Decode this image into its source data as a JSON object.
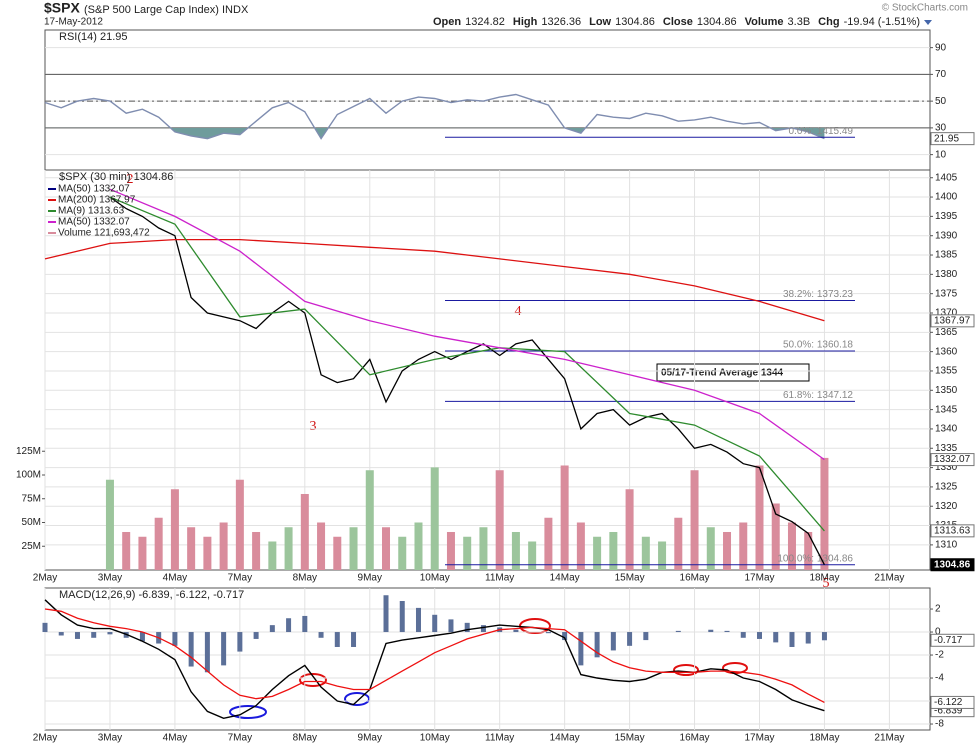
{
  "header": {
    "symbol": "$SPX",
    "name": "(S&P 500 Large Cap Index) INDX",
    "date": "17-May-2012",
    "credit": "© StockCharts.com",
    "quote": [
      {
        "label": "Open",
        "value": "1324.82"
      },
      {
        "label": "High",
        "value": "1326.36"
      },
      {
        "label": "Low",
        "value": "1304.86"
      },
      {
        "label": "Close",
        "value": "1304.86"
      },
      {
        "label": "Volume",
        "value": "3.3B"
      },
      {
        "label": "Chg",
        "value": "-19.94 (-1.51%)"
      }
    ]
  },
  "chart_data": [
    {
      "type": "line",
      "title": "RSI(14) 21.95",
      "xlim": [
        0,
        54.5
      ],
      "ylim": [
        -1.5,
        103.2
      ],
      "yticks": [
        10,
        30,
        50,
        70,
        90
      ],
      "reference_lines": [
        30,
        50,
        70
      ],
      "fill_color": "#6f9c9c",
      "x": [
        0,
        1,
        2,
        3,
        4,
        5,
        6,
        7,
        8,
        9,
        10,
        11,
        12,
        13,
        14,
        15,
        16,
        17,
        18,
        19,
        20,
        21,
        22,
        23,
        24,
        25,
        26,
        27,
        28,
        29,
        30,
        31,
        32,
        33,
        34,
        35,
        36,
        37,
        38,
        39,
        40,
        41,
        42,
        43,
        44,
        45,
        46,
        47,
        48
      ],
      "series": [
        {
          "color": "#7f8db0",
          "values": [
            49,
            45,
            50,
            52,
            50,
            41,
            44,
            38,
            27,
            24,
            22,
            26,
            25,
            35,
            45,
            49,
            42,
            22,
            40,
            46,
            52,
            41,
            50,
            53,
            52,
            49,
            51,
            50,
            53,
            55,
            51,
            47,
            30,
            26,
            40,
            38,
            37,
            41,
            39,
            35,
            36,
            38,
            35,
            33,
            34,
            28,
            30,
            27,
            21.95
          ]
        }
      ]
    },
    {
      "type": "line",
      "title": "$SPX (30 min) 1304.86",
      "xlim": [
        0,
        54.5
      ],
      "ylim": [
        1303.5,
        1407
      ],
      "yticks": [
        1310,
        1315,
        1320,
        1325,
        1330,
        1335,
        1340,
        1345,
        1350,
        1355,
        1360,
        1365,
        1370,
        1375,
        1380,
        1385,
        1390,
        1395,
        1400,
        1405
      ],
      "xticks": [
        {
          "value": 0,
          "label": "2May"
        },
        {
          "value": 4,
          "label": "3May"
        },
        {
          "value": 8,
          "label": "4May"
        },
        {
          "value": 12,
          "label": "7May"
        },
        {
          "value": 16,
          "label": "8May"
        },
        {
          "value": 20,
          "label": "9May"
        },
        {
          "value": 24,
          "label": "10May"
        },
        {
          "value": 28,
          "label": "11May"
        },
        {
          "value": 32,
          "label": "14May"
        },
        {
          "value": 36,
          "label": "15May"
        },
        {
          "value": 40,
          "label": "16May"
        },
        {
          "value": 44,
          "label": "17May"
        },
        {
          "value": 48,
          "label": "18May"
        },
        {
          "value": 52,
          "label": "21May"
        }
      ],
      "grid": true,
      "legend_extra": [
        {
          "name": "MA(50) 1332.07",
          "color": "#000080"
        }
      ],
      "series": [
        {
          "color": "#000000",
          "x": [
            4,
            5,
            6,
            7,
            8,
            9,
            10,
            11,
            12,
            13,
            14,
            15,
            16,
            17,
            18,
            19,
            20,
            21,
            22,
            23,
            24,
            25,
            26,
            27,
            28,
            29,
            30,
            31,
            32,
            33,
            34,
            35,
            36,
            37,
            38,
            39,
            40,
            41,
            42,
            43,
            44,
            45,
            46,
            47,
            48
          ],
          "values": [
            1400,
            1397,
            1395,
            1392,
            1390,
            1374,
            1370,
            1369,
            1368,
            1366,
            1370,
            1373,
            1370,
            1354,
            1352,
            1353,
            1358,
            1347,
            1355,
            1358,
            1360,
            1358,
            1360,
            1362,
            1359,
            1362,
            1363,
            1358,
            1353,
            1340,
            1344,
            1345,
            1341,
            1343,
            1344,
            1340,
            1335,
            1336,
            1334,
            1331,
            1330,
            1318,
            1316,
            1313,
            1304.86
          ]
        },
        {
          "name": "MA(200) 1367.97",
          "color": "#dd1111",
          "x": [
            0,
            4,
            8,
            12,
            16,
            20,
            24,
            28,
            32,
            36,
            40,
            44,
            48
          ],
          "values": [
            1384,
            1388,
            1389,
            1389,
            1388,
            1387,
            1386,
            1384,
            1382,
            1380,
            1377,
            1373,
            1367.97
          ]
        },
        {
          "name": "MA(9) 1313.63",
          "color": "#2e8b2e",
          "x": [
            4,
            8,
            12,
            16,
            20,
            24,
            28,
            32,
            36,
            40,
            44,
            48
          ],
          "values": [
            1400,
            1393,
            1369,
            1371,
            1354,
            1358,
            1361,
            1360,
            1344,
            1341,
            1333,
            1313.63
          ]
        },
        {
          "name": "MA(50) 1332.07",
          "color": "#cc22cc",
          "x": [
            4,
            8,
            12,
            16,
            20,
            24,
            28,
            32,
            36,
            40,
            44,
            48
          ],
          "values": [
            1402,
            1395,
            1386,
            1373,
            1368,
            1364,
            1361,
            1358,
            1354,
            1350,
            1344,
            1332.07
          ]
        }
      ],
      "volume": {
        "name": "Volume 121,693,472",
        "up_color": "#9cc59c",
        "down_color": "#d98c9c",
        "ylim": [
          0,
          421
        ],
        "yticks": [
          {
            "value": 25,
            "label": "25M"
          },
          {
            "value": 50,
            "label": "50M"
          },
          {
            "value": 75,
            "label": "75M"
          },
          {
            "value": 100,
            "label": "100M"
          },
          {
            "value": 125,
            "label": "125M"
          }
        ],
        "x": [
          4,
          5,
          6,
          7,
          8,
          9,
          10,
          11,
          12,
          13,
          14,
          15,
          16,
          17,
          18,
          19,
          20,
          21,
          22,
          23,
          24,
          25,
          26,
          27,
          28,
          29,
          30,
          31,
          32,
          33,
          34,
          35,
          36,
          37,
          38,
          39,
          40,
          41,
          42,
          43,
          44,
          45,
          46,
          47,
          48
        ],
        "values": [
          95,
          40,
          35,
          55,
          85,
          45,
          35,
          50,
          95,
          40,
          30,
          45,
          80,
          50,
          35,
          45,
          105,
          45,
          35,
          50,
          108,
          40,
          35,
          45,
          105,
          40,
          30,
          55,
          110,
          50,
          35,
          40,
          85,
          35,
          30,
          55,
          105,
          45,
          40,
          50,
          110,
          70,
          50,
          40,
          118
        ]
      },
      "fib": [
        {
          "label": "0.0%: 1415.49",
          "value": 1415.49
        },
        {
          "label": "38.2%: 1373.23",
          "value": 1373.23
        },
        {
          "label": "50.0%: 1360.18",
          "value": 1360.18
        },
        {
          "label": "61.8%: 1347.12",
          "value": 1347.12
        },
        {
          "label": "100.0%: 1304.86",
          "value": 1304.86
        }
      ],
      "fib_color": "#1a1aa0",
      "annotations": {
        "trend": "05/17-Trend Average 1344",
        "wave_2": "2",
        "wave_3": "3",
        "wave_4": "4",
        "wave_5": "5"
      }
    },
    {
      "type": "line",
      "title": "MACD(12,26,9) -6.839, -6.122, -0.717",
      "xlim": [
        0,
        54.5
      ],
      "ylim": [
        -8.52,
        3.83
      ],
      "yticks": [
        2,
        0,
        -2,
        -4,
        -6,
        -8
      ],
      "xticks": [
        {
          "value": 0,
          "label": "2May"
        },
        {
          "value": 4,
          "label": "3May"
        },
        {
          "value": 8,
          "label": "4May"
        },
        {
          "value": 12,
          "label": "7May"
        },
        {
          "value": 16,
          "label": "8May"
        },
        {
          "value": 20,
          "label": "9May"
        },
        {
          "value": 24,
          "label": "10May"
        },
        {
          "value": 28,
          "label": "11May"
        },
        {
          "value": 32,
          "label": "14May"
        },
        {
          "value": 36,
          "label": "15May"
        },
        {
          "value": 40,
          "label": "16May"
        },
        {
          "value": 44,
          "label": "17May"
        },
        {
          "value": 48,
          "label": "18May"
        },
        {
          "value": 52,
          "label": "21May"
        }
      ],
      "grid": true,
      "x": [
        0,
        1,
        2,
        3,
        4,
        5,
        6,
        7,
        8,
        9,
        10,
        11,
        12,
        13,
        14,
        15,
        16,
        17,
        18,
        19,
        20,
        21,
        22,
        23,
        24,
        25,
        26,
        27,
        28,
        29,
        30,
        31,
        32,
        33,
        34,
        35,
        36,
        37,
        38,
        39,
        40,
        41,
        42,
        43,
        44,
        45,
        46,
        47,
        48
      ],
      "series": [
        {
          "color": "#000000",
          "values": [
            2.8,
            1.5,
            0.6,
            0.3,
            0.3,
            -0.2,
            -0.8,
            -1.5,
            -2.4,
            -5.2,
            -6.9,
            -7.5,
            -7.2,
            -6.4,
            -5.0,
            -3.8,
            -2.9,
            -4.8,
            -6.0,
            -6.3,
            -5.0,
            -1.0,
            -0.7,
            -0.5,
            -0.3,
            -0.1,
            0.2,
            0.4,
            0.6,
            0.5,
            0.4,
            0.2,
            -0.5,
            -3.7,
            -4.0,
            -4.2,
            -4.3,
            -4.1,
            -3.5,
            -3.4,
            -3.5,
            -3.2,
            -3.3,
            -4.0,
            -4.3,
            -5.0,
            -5.9,
            -6.4,
            -6.839
          ]
        },
        {
          "color": "#ee1111",
          "values": [
            2.0,
            1.8,
            1.2,
            0.8,
            0.5,
            0.3,
            0,
            -0.5,
            -1.2,
            -2.2,
            -3.4,
            -4.6,
            -5.5,
            -5.8,
            -5.6,
            -5.0,
            -4.3,
            -4.3,
            -4.7,
            -5.0,
            -5.0,
            -4.2,
            -3.4,
            -2.6,
            -1.8,
            -1.2,
            -0.6,
            -0.2,
            0.2,
            0.3,
            0.4,
            0.3,
            0.2,
            -0.8,
            -1.8,
            -2.6,
            -3.1,
            -3.4,
            -3.5,
            -3.5,
            -3.5,
            -3.4,
            -3.4,
            -3.5,
            -3.7,
            -4.1,
            -4.6,
            -5.4,
            -6.122
          ]
        }
      ],
      "histogram": {
        "color": "#5b6f98",
        "values": [
          0.8,
          -0.3,
          -0.6,
          -0.5,
          -0.2,
          -0.5,
          -0.8,
          -1.0,
          -1.2,
          -3.0,
          -3.5,
          -2.9,
          -1.7,
          -0.6,
          0.6,
          1.2,
          1.4,
          -0.5,
          -1.3,
          -1.3,
          0,
          3.2,
          2.7,
          2.1,
          1.5,
          1.1,
          0.8,
          0.6,
          0.4,
          0.2,
          0,
          -0.1,
          -0.7,
          -2.9,
          -2.2,
          -1.6,
          -1.2,
          -0.7,
          0,
          0.1,
          0,
          0.2,
          0.1,
          -0.5,
          -0.6,
          -0.9,
          -1.3,
          -1.0,
          -0.717
        ]
      }
    }
  ]
}
